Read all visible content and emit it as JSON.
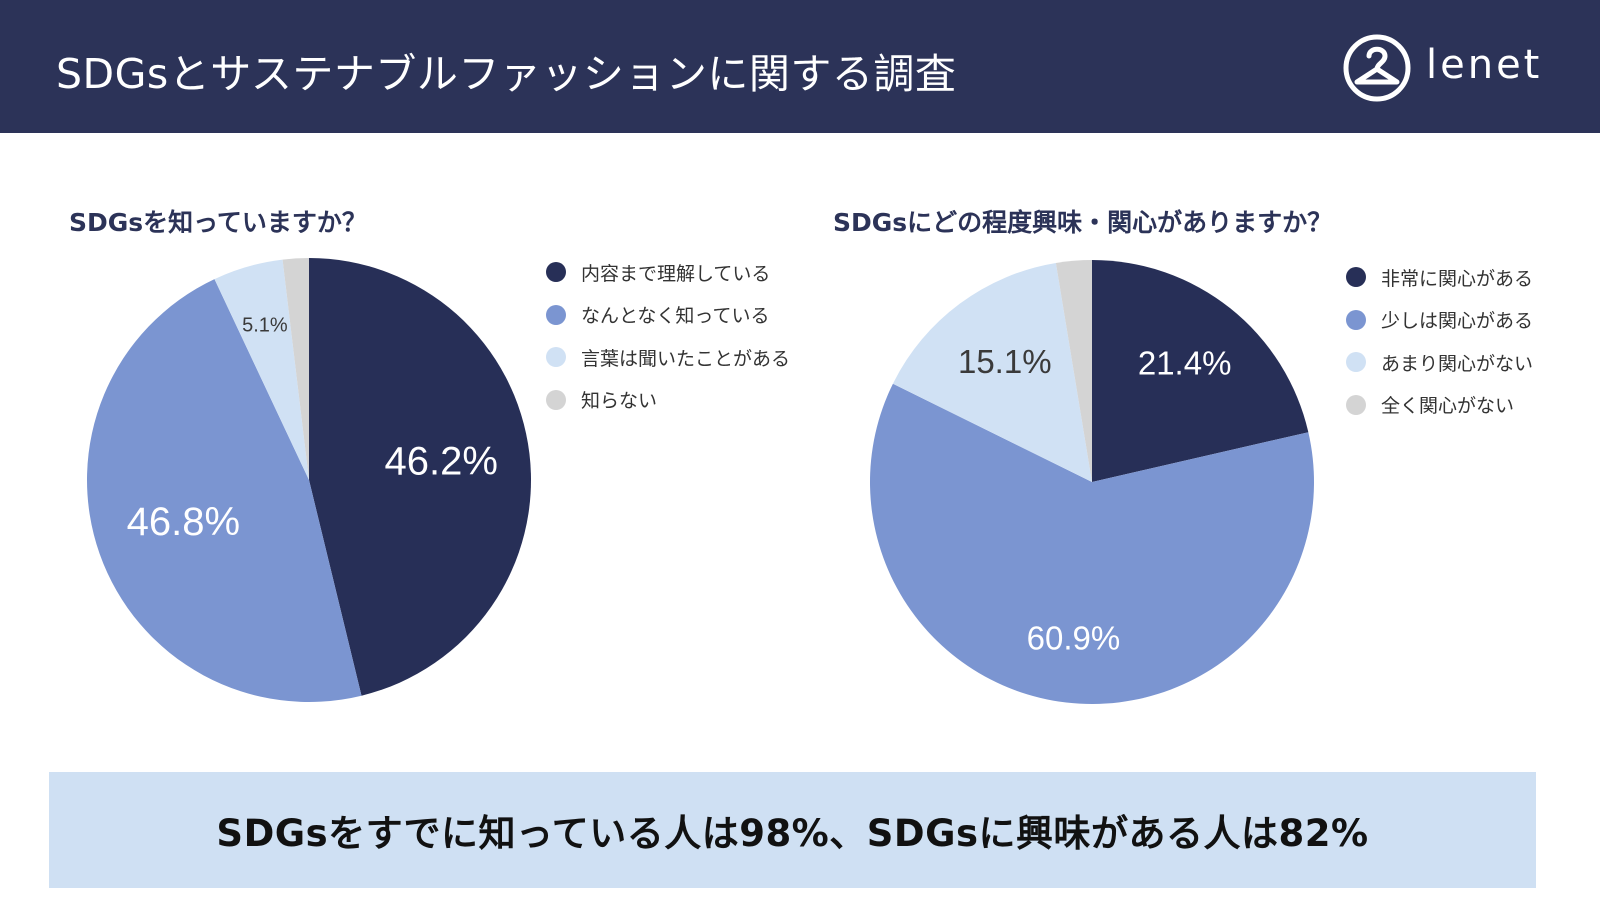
{
  "header": {
    "title": "SDGsとサステナブルファッションに関する調査",
    "logo_text": "lenet"
  },
  "colors": {
    "header_bg": "#2c3358",
    "banner_bg": "#cfe0f3",
    "title_text": "#2c3358",
    "series": [
      "#272f57",
      "#7b95d1",
      "#d0e1f4",
      "#d4d4d4"
    ]
  },
  "summary": {
    "text": "SDGsをすでに知っている人は98%、SDGsに興味がある人は82%"
  },
  "chart_data": [
    {
      "type": "pie",
      "title": "SDGsを知っていますか？",
      "categories": [
        "内容まで理解している",
        "なんとなく知っている",
        "言葉は聞いたことがある",
        "知らない"
      ],
      "values": [
        46.2,
        46.8,
        5.1,
        1.9
      ],
      "data_labels": [
        "46.2%",
        "46.8%",
        "5.1%",
        ""
      ],
      "start_angle": "12 o'clock, clockwise",
      "legend_position": "right"
    },
    {
      "type": "pie",
      "title": "SDGsにどの程度興味・関心がありますか？",
      "categories": [
        "非常に関心がある",
        "少しは関心がある",
        "あまり関心がない",
        "全く関心がない"
      ],
      "values": [
        21.4,
        60.9,
        15.1,
        2.6
      ],
      "data_labels": [
        "21.4%",
        "60.9%",
        "15.1%",
        ""
      ],
      "start_angle": "12 o'clock, clockwise",
      "legend_position": "right"
    }
  ]
}
